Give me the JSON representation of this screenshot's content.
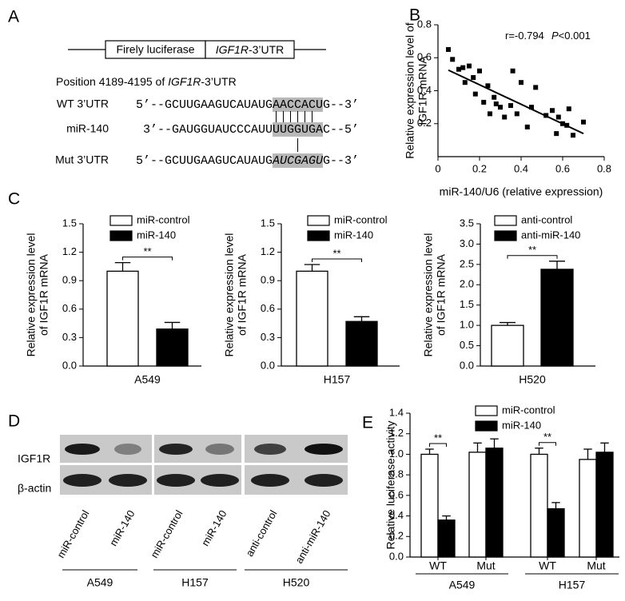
{
  "panel_labels": [
    "A",
    "B",
    "C",
    "D",
    "E"
  ],
  "construct": {
    "reporter": "Firely luciferase",
    "gene": "IGF1R",
    "utr": "-3’UTR"
  },
  "position": {
    "text": "Position 4189-4195 of ",
    "gene": "IGF1R",
    "utr": "-3’UTR"
  },
  "alignment": [
    {
      "name": "WT 3’UTR",
      "pre": "5’--GCUUGAAGUCAUAUG",
      "site": "AACCACU",
      "post": "G--3’"
    },
    {
      "name": "miR-140",
      "pre": "3’--GAUGGUAUCCCAUU",
      "site": "UUGGUGA",
      "post": "C--5’"
    },
    {
      "name": "Mut 3’UTR",
      "pre": "5’--GCUUGAAGUCAUAUG",
      "site": "AUCGAGU",
      "post": "G--3’",
      "italic": true
    }
  ],
  "blot": {
    "rows": [
      "IGF1R",
      "β-actin"
    ],
    "lanes": [
      "miR-control",
      "miR-140",
      "miR-control",
      "miR-140",
      "anti-control",
      "anti-miR-140"
    ],
    "groups": [
      "A549",
      "H157",
      "H520"
    ]
  },
  "chart_data": [
    {
      "type": "scatter",
      "xlabel": "miR-140/U6 (relative expression)",
      "ylabel": [
        "Relative expression level of",
        "IGF1R mRNA"
      ],
      "annotations": {
        "r": "r=-0.794",
        "p_symbol": "P",
        "p_value": "<0.001"
      },
      "x": [
        0.05,
        0.07,
        0.1,
        0.12,
        0.13,
        0.15,
        0.17,
        0.18,
        0.2,
        0.22,
        0.24,
        0.25,
        0.27,
        0.28,
        0.3,
        0.32,
        0.35,
        0.36,
        0.38,
        0.4,
        0.43,
        0.45,
        0.47,
        0.52,
        0.55,
        0.57,
        0.58,
        0.6,
        0.62,
        0.63,
        0.65,
        0.7
      ],
      "y": [
        0.65,
        0.59,
        0.53,
        0.54,
        0.45,
        0.55,
        0.48,
        0.38,
        0.52,
        0.33,
        0.43,
        0.26,
        0.36,
        0.32,
        0.3,
        0.24,
        0.31,
        0.52,
        0.26,
        0.45,
        0.18,
        0.3,
        0.42,
        0.25,
        0.28,
        0.14,
        0.24,
        0.2,
        0.19,
        0.29,
        0.13,
        0.21
      ],
      "color": "#000000",
      "fit": {
        "x": [
          0.05,
          0.7
        ],
        "y": [
          0.525,
          0.14
        ]
      },
      "xlim": [
        0,
        0.8
      ],
      "xticks": [
        0,
        0.2,
        0.4,
        0.6,
        0.8
      ],
      "ylim": [
        0,
        0.8
      ],
      "yticks": [
        0.2,
        0.4,
        0.6,
        0.8
      ]
    },
    {
      "type": "bar",
      "ylabel": [
        "Relative expression level",
        "of IGF1R mRNA"
      ],
      "categories": [
        "A549"
      ],
      "series": [
        {
          "name": "miR-control",
          "color": "#ffffff",
          "values": [
            1.0
          ],
          "errors": [
            0.09
          ]
        },
        {
          "name": "miR-140",
          "color": "#000000",
          "values": [
            0.39
          ],
          "errors": [
            0.07
          ]
        }
      ],
      "significance": [
        {
          "label": "**",
          "category": 0
        }
      ],
      "ylim": [
        0,
        1.5
      ],
      "yticks": [
        {
          "value": 0,
          "label": "0.0"
        },
        0.3,
        0.6,
        0.9,
        1.2,
        1.5
      ]
    },
    {
      "type": "bar",
      "ylabel": [
        "Relative expression level",
        "of IGF1R mRNA"
      ],
      "categories": [
        "H157"
      ],
      "series": [
        {
          "name": "miR-control",
          "color": "#ffffff",
          "values": [
            1.0
          ],
          "errors": [
            0.07
          ]
        },
        {
          "name": "miR-140",
          "color": "#000000",
          "values": [
            0.47
          ],
          "errors": [
            0.05
          ]
        }
      ],
      "significance": [
        {
          "label": "**",
          "category": 0
        }
      ],
      "ylim": [
        0,
        1.5
      ],
      "yticks": [
        {
          "value": 0,
          "label": "0.0"
        },
        0.3,
        0.6,
        0.9,
        1.2,
        1.5
      ]
    },
    {
      "type": "bar",
      "ylabel": [
        "Relative expression level",
        "of IGF1R mRNA"
      ],
      "categories": [
        "H520"
      ],
      "series": [
        {
          "name": "anti-control",
          "color": "#ffffff",
          "values": [
            1.0
          ],
          "errors": [
            0.07
          ]
        },
        {
          "name": "anti-miR-140",
          "color": "#000000",
          "values": [
            2.38
          ],
          "errors": [
            0.2
          ]
        }
      ],
      "significance": [
        {
          "label": "**",
          "category": 0
        }
      ],
      "ylim": [
        0,
        3.5
      ],
      "yticks": [
        {
          "value": 0,
          "label": "0.0"
        },
        0.5,
        {
          "value": 1,
          "label": "1.0"
        },
        1.5,
        {
          "value": 2,
          "label": "2.0"
        },
        2.5,
        {
          "value": 3,
          "label": "3.0"
        },
        3.5
      ]
    },
    {
      "type": "bar",
      "ylabel": [
        "Relative luciferase activity"
      ],
      "categories": [
        "WT",
        "Mut",
        "WT",
        "Mut"
      ],
      "groups": [
        "A549",
        "H157"
      ],
      "series": [
        {
          "name": "miR-control",
          "color": "#ffffff",
          "values": [
            1.0,
            1.02,
            1.0,
            0.95
          ],
          "errors": [
            0.05,
            0.09,
            0.06,
            0.1
          ]
        },
        {
          "name": "miR-140",
          "color": "#000000",
          "values": [
            0.36,
            1.06,
            0.47,
            1.02
          ],
          "errors": [
            0.04,
            0.09,
            0.06,
            0.09
          ]
        }
      ],
      "significance": [
        {
          "label": "**",
          "category": 0
        },
        {
          "label": "**",
          "category": 2
        }
      ],
      "ylim": [
        0,
        1.4
      ],
      "yticks": [
        {
          "value": 0,
          "label": "0.0"
        },
        0.2,
        0.4,
        0.6,
        0.8,
        {
          "value": 1,
          "label": "1.0"
        },
        1.2,
        1.4
      ]
    }
  ]
}
